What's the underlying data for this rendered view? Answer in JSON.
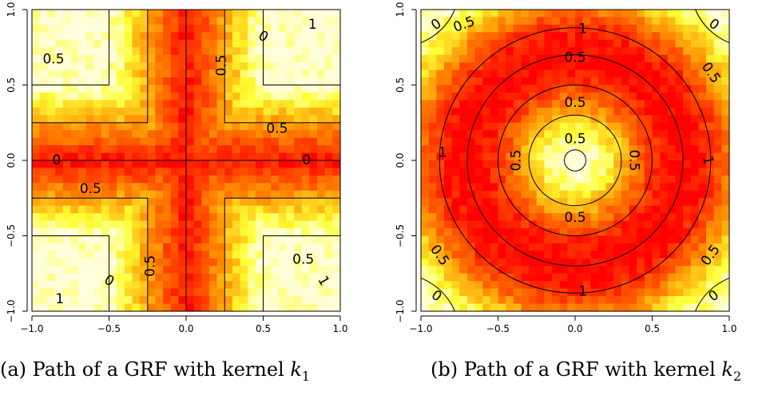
{
  "colors": {
    "low": "#ff0000",
    "mid": "#ff8c00",
    "high": "#ffff33",
    "top": "#ffffd9",
    "contour": "#000000"
  },
  "charts": [
    {
      "type": "heatmap",
      "kernel": "k1",
      "caption_prefix": "(a) Path of a GRF with kernel ",
      "caption_var": "k",
      "caption_sub": "1",
      "x_ticks": [
        "−1.0",
        "−0.5",
        "0.0",
        "0.5",
        "1.0"
      ],
      "y_ticks": [
        "−1.0",
        "−0.5",
        "0.0",
        "0.5",
        "1.0"
      ],
      "xlim": [
        -1,
        1
      ],
      "ylim": [
        -1,
        1
      ],
      "contour_levels": [
        0,
        0.5,
        1
      ],
      "contour_labels": [
        {
          "text": "0",
          "x": -0.84,
          "y": 0.0,
          "rot": 0
        },
        {
          "text": "0",
          "x": 0.78,
          "y": 0.0,
          "rot": 0
        },
        {
          "text": "0",
          "x": 0.5,
          "y": 0.82,
          "rot": -30
        },
        {
          "text": "0",
          "x": -0.5,
          "y": -0.8,
          "rot": -30
        },
        {
          "text": "0.5",
          "x": -0.86,
          "y": 0.67,
          "rot": 0
        },
        {
          "text": "0.5",
          "x": 0.59,
          "y": 0.21,
          "rot": 0
        },
        {
          "text": "0.5",
          "x": -0.62,
          "y": -0.19,
          "rot": 0
        },
        {
          "text": "0.5",
          "x": 0.76,
          "y": -0.66,
          "rot": 0
        },
        {
          "text": "0.5",
          "x": 0.23,
          "y": 0.63,
          "rot": 90
        },
        {
          "text": "0.5",
          "x": -0.23,
          "y": -0.7,
          "rot": 90
        },
        {
          "text": "1",
          "x": 0.82,
          "y": 0.9,
          "rot": 0
        },
        {
          "text": "1",
          "x": -0.82,
          "y": -0.92,
          "rot": 0
        },
        {
          "text": "1",
          "x": 0.89,
          "y": -0.8,
          "rot": -60
        }
      ]
    },
    {
      "type": "heatmap",
      "kernel": "k2",
      "caption_prefix": "(b) Path of a GRF with kernel ",
      "caption_var": "k",
      "caption_sub": "2",
      "x_ticks": [
        "−1.0",
        "−0.5",
        "0.0",
        "0.5",
        "1.0"
      ],
      "y_ticks": [
        "−1.0",
        "−0.5",
        "0.0",
        "0.5",
        "1.0"
      ],
      "xlim": [
        -1,
        1
      ],
      "ylim": [
        -1,
        1
      ],
      "contour_levels": [
        0,
        0.5,
        1
      ],
      "contour_labels": [
        {
          "text": "0",
          "x": -0.9,
          "y": 0.9,
          "rot": 35
        },
        {
          "text": "0",
          "x": 0.9,
          "y": 0.9,
          "rot": -35
        },
        {
          "text": "0",
          "x": -0.9,
          "y": -0.9,
          "rot": -35
        },
        {
          "text": "0",
          "x": 0.9,
          "y": -0.9,
          "rot": 35
        },
        {
          "text": "0.5",
          "x": -0.72,
          "y": 0.9,
          "rot": 20
        },
        {
          "text": "0.5",
          "x": 0.88,
          "y": 0.58,
          "rot": -55
        },
        {
          "text": "0.5",
          "x": -0.88,
          "y": -0.63,
          "rot": -55
        },
        {
          "text": "0.5",
          "x": 0.88,
          "y": -0.63,
          "rot": 55
        },
        {
          "text": "0.5",
          "x": 0.0,
          "y": 0.68,
          "rot": 0
        },
        {
          "text": "0.5",
          "x": 0.0,
          "y": 0.38,
          "rot": 0
        },
        {
          "text": "0.5",
          "x": 0.0,
          "y": 0.14,
          "rot": 0
        },
        {
          "text": "0.5",
          "x": -0.38,
          "y": 0.0,
          "rot": 90
        },
        {
          "text": "0.5",
          "x": 0.38,
          "y": 0.0,
          "rot": -90
        },
        {
          "text": "0.5",
          "x": 0.0,
          "y": -0.38,
          "rot": 0
        },
        {
          "text": "1",
          "x": 0.05,
          "y": 0.87,
          "rot": 0
        },
        {
          "text": "1",
          "x": 0.05,
          "y": -0.87,
          "rot": 0
        },
        {
          "text": "1",
          "x": -0.86,
          "y": 0.05,
          "rot": 0
        },
        {
          "text": "1",
          "x": 0.86,
          "y": 0.0,
          "rot": -80
        }
      ]
    }
  ]
}
